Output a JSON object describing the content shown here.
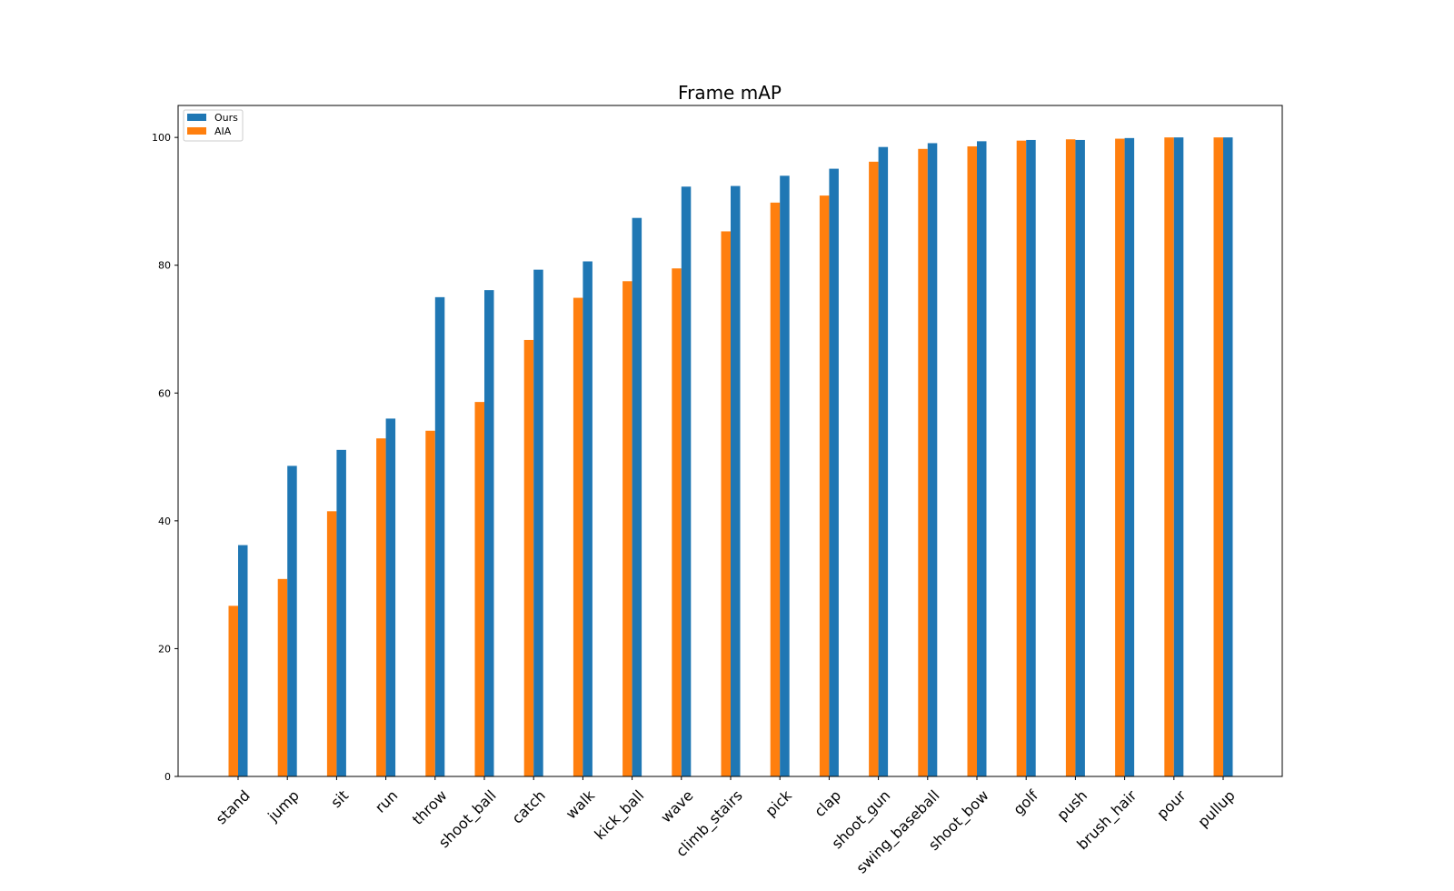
{
  "chart_data": {
    "type": "bar",
    "title": "Frame mAP",
    "xlabel": "",
    "ylabel": "",
    "ylim": [
      0,
      105
    ],
    "yticks": [
      0,
      20,
      40,
      60,
      80,
      100
    ],
    "grid": false,
    "legend": {
      "placement": "top-left"
    },
    "categories": [
      "stand",
      "jump",
      "sit",
      "run",
      "throw",
      "shoot_ball",
      "catch",
      "walk",
      "kick_ball",
      "wave",
      "climb_stairs",
      "pick",
      "clap",
      "shoot_gun",
      "swing_baseball",
      "shoot_bow",
      "golf",
      "push",
      "brush_hair",
      "pour",
      "pullup"
    ],
    "series": [
      {
        "name": "Ours",
        "color": "#1f77b4",
        "values": [
          36.2,
          48.6,
          51.1,
          56.0,
          75.0,
          76.1,
          79.3,
          80.6,
          87.4,
          92.3,
          92.4,
          94.0,
          95.1,
          98.5,
          99.1,
          99.4,
          99.6,
          99.6,
          99.9,
          100.0,
          100.0
        ]
      },
      {
        "name": "AIA",
        "color": "#ff7f0e",
        "values": [
          26.7,
          30.9,
          41.5,
          52.9,
          54.1,
          58.6,
          68.3,
          74.9,
          77.5,
          79.5,
          85.3,
          89.8,
          90.9,
          96.2,
          98.2,
          98.6,
          99.5,
          99.7,
          99.8,
          100.0,
          100.0
        ]
      }
    ]
  }
}
